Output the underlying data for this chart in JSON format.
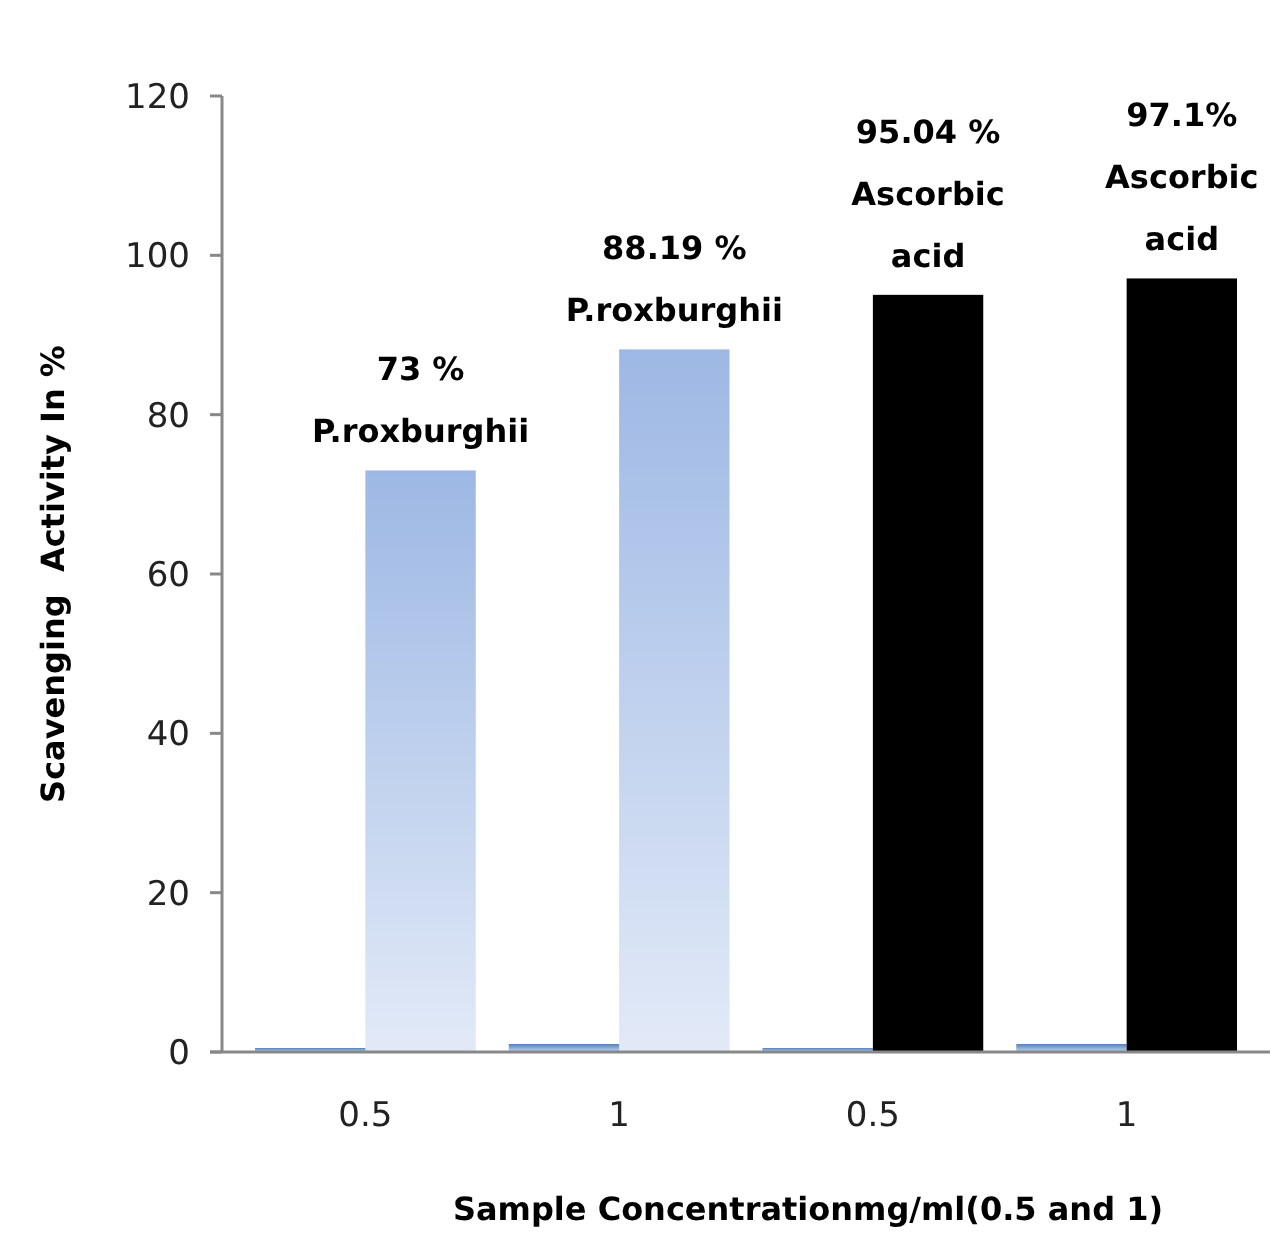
{
  "chart_data": {
    "type": "bar",
    "xlabel": "Sample Concentrationmg/ml(0.5 and 1)",
    "ylabel": "Scavenging  Activity In %",
    "categories": [
      "0.5",
      "1",
      "0.5",
      "1"
    ],
    "ylim": [
      0,
      120
    ],
    "yticks": [
      0,
      20,
      40,
      60,
      80,
      100,
      120
    ],
    "grid": false,
    "series": [
      {
        "color": "#4f81bd",
        "values": [
          0.5,
          1,
          0.5,
          1
        ]
      },
      {
        "colors": [
          "#9db8e4",
          "#9db8e4",
          "#000000",
          "#000000"
        ],
        "values": [
          73,
          88.19,
          95.04,
          97.1
        ],
        "value_labels": [
          "73 %\nP.roxburghii",
          "88.19 %\nP.roxburghii",
          "95.04 %\nAscorbic\nacid",
          "97.1%\nAscorbic\nacid"
        ]
      }
    ]
  }
}
